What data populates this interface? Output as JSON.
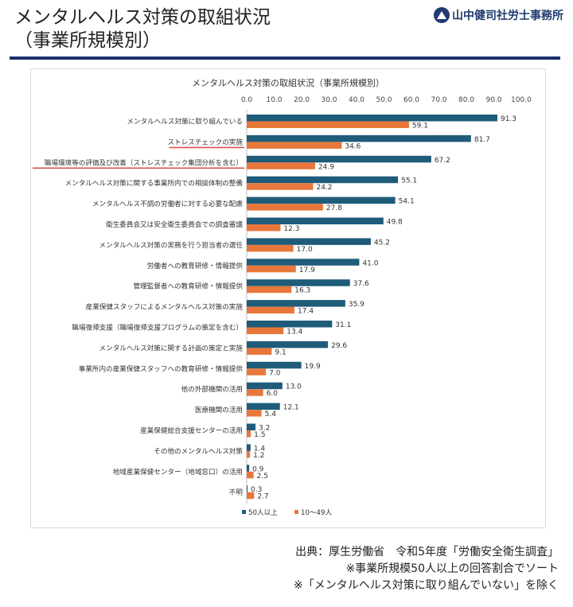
{
  "header": {
    "title_line1": "メンタルヘルス対策の取組状況",
    "title_line2": "（事業所規模別）",
    "logo_text": "山中健司社労士事務所"
  },
  "colors": {
    "series_50plus": "#1f5c7a",
    "series_10_49": "#e8773b",
    "highlight_underline": "#d9534f",
    "header_rule": "#1b2f6b"
  },
  "chart_data": {
    "type": "bar",
    "orientation": "horizontal",
    "title": "メンタルヘルス対策の取組状況（事業所規模別）",
    "xlim": [
      0,
      100
    ],
    "xticks": [
      "0.0",
      "10.0",
      "20.0",
      "30.0",
      "40.0",
      "50.0",
      "60.0",
      "70.0",
      "80.0",
      "90.0",
      "100.0"
    ],
    "grid": false,
    "legend_position": "bottom-left",
    "categories": [
      "メンタルヘルス対策に取り組んでいる",
      "ストレスチェックの実施",
      "職場環境等の評価及び改善（ストレスチェック集団分析を含む）",
      "メンタルヘルス対策に関する事業所内での相談体制の整備",
      "メンタルヘルス不調の労働者に対する必要な配慮",
      "衛生委員会又は安全衛生委員会での調査審議",
      "メンタルヘルス対策の実務を行う担当者の選任",
      "労働者への教育研修・情報提供",
      "管理監督者への教育研修・情報提供",
      "産業保健スタッフによるメンタルヘルス対策の実施",
      "職場復帰支援（職場復帰支援プログラムの策定を含む）",
      "メンタルヘルス対策に関する計画の策定と実施",
      "事業所内の産業保健スタッフへの教育研修・情報提供",
      "他の外部機関の活用",
      "医療機関の活用",
      "産業保健総合支援センターの活用",
      "その他のメンタルヘルス対策",
      "地域産業保健センター（地域窓口）の活用",
      "不明"
    ],
    "highlighted_categories": [
      1,
      2
    ],
    "series": [
      {
        "name": "50人以上",
        "values": [
          91.3,
          81.7,
          67.2,
          55.1,
          54.1,
          49.8,
          45.2,
          41.0,
          37.6,
          35.9,
          31.1,
          29.6,
          19.9,
          13.0,
          12.1,
          3.2,
          1.4,
          0.9,
          0.3
        ],
        "labels": [
          "91.3",
          "81.7",
          "67.2",
          "55.1",
          "54.1",
          "49.8",
          "45.2",
          "41.0",
          "37.6",
          "35.9",
          "31.1",
          "29.6",
          "19.9",
          "13.0",
          "12.1",
          "3.2",
          "1.4",
          "0.9",
          "0.3"
        ]
      },
      {
        "name": "10～49人",
        "values": [
          59.1,
          34.6,
          24.9,
          24.2,
          27.8,
          12.3,
          17.0,
          17.9,
          16.3,
          17.4,
          13.4,
          9.1,
          7.0,
          6.0,
          5.4,
          1.5,
          1.2,
          2.5,
          2.7
        ],
        "labels": [
          "59.1",
          "34.6",
          "24.9",
          "24.2",
          "27.8",
          "12.3",
          "17.0",
          "17.9",
          "16.3",
          "17.4",
          "13.4",
          "9.1",
          "7.0",
          "6.0",
          "5.4",
          "1.5",
          "1.2",
          "2.5",
          "2.7"
        ]
      }
    ]
  },
  "footer": {
    "source": "出典：厚生労働省　令和5年度「労働安全衛生調査」",
    "note1": "※事業所規模50人以上の回答割合でソート",
    "note2": "※「メンタルヘルス対策に取り組んでいない」を除く"
  }
}
